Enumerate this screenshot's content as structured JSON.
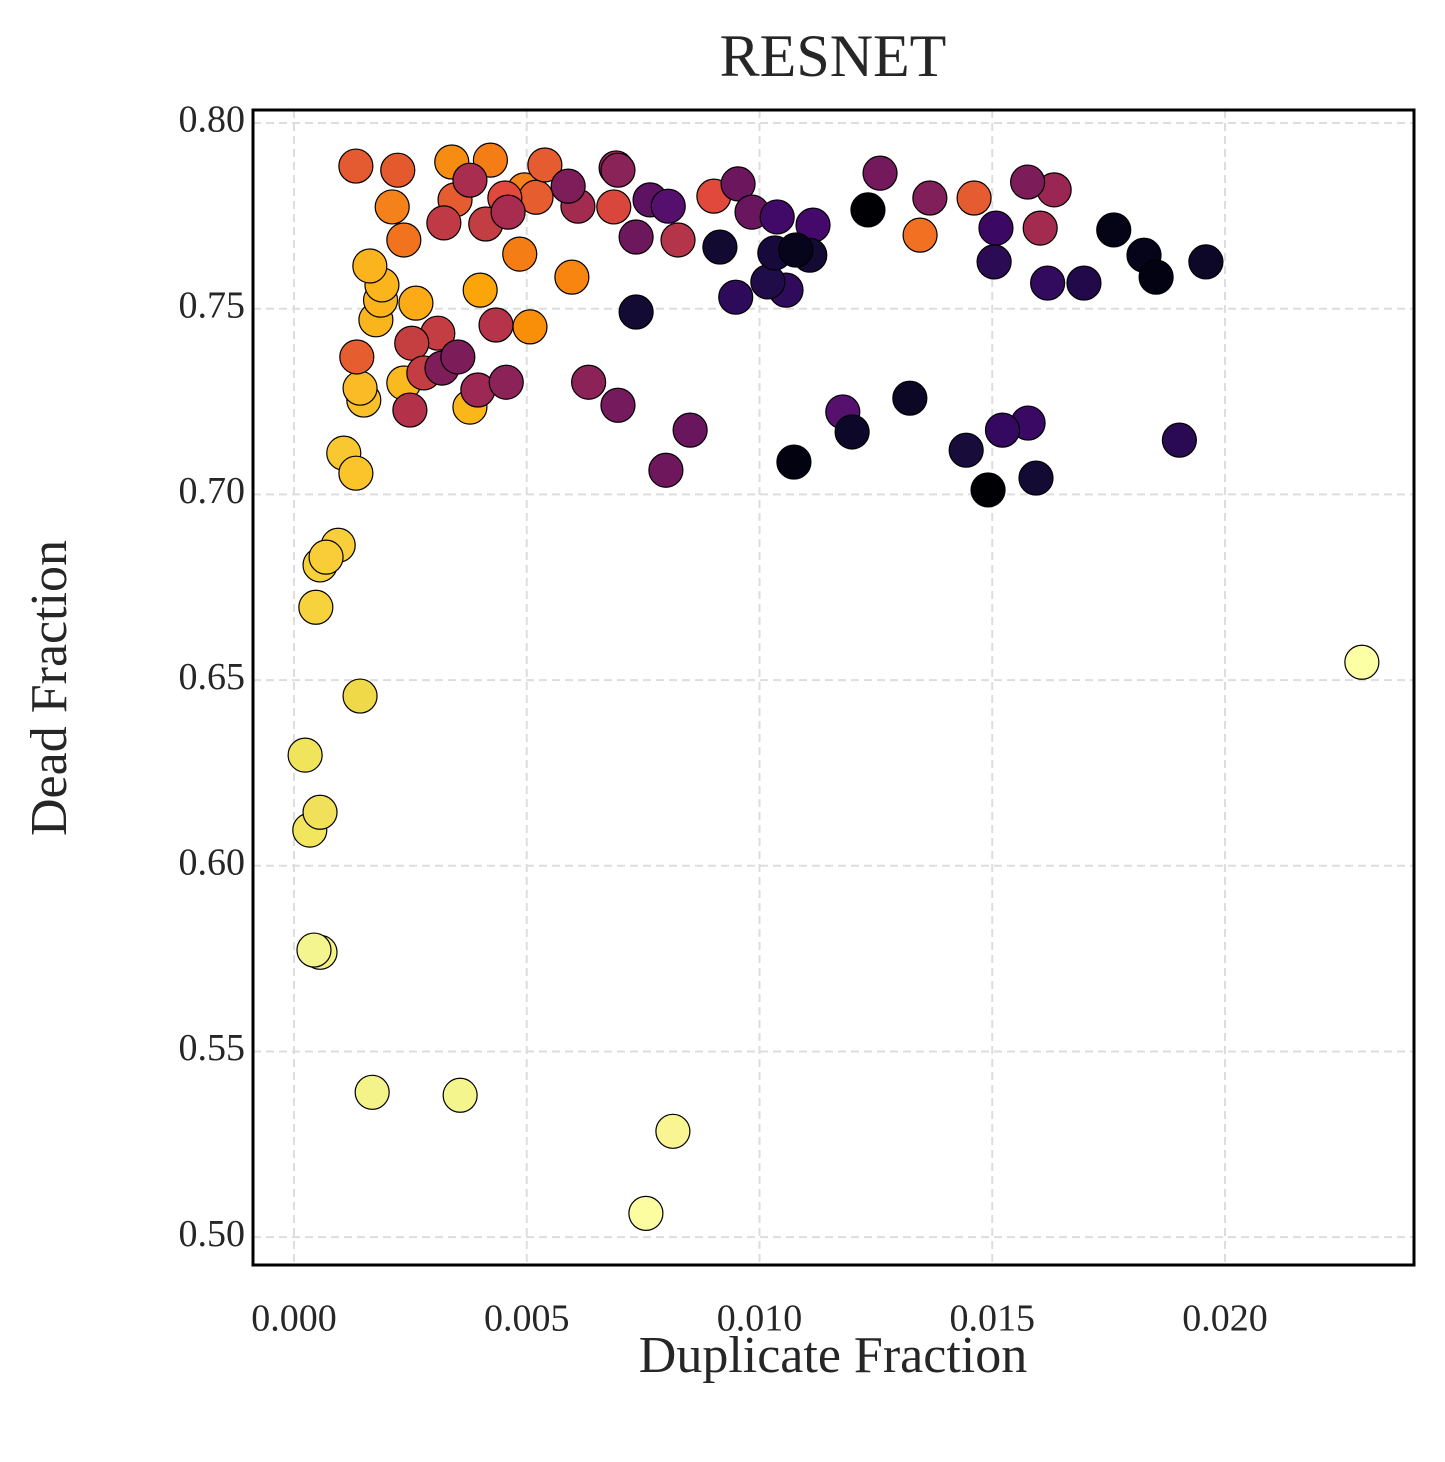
{
  "chart_data": {
    "type": "scatter",
    "title": "RESNET",
    "x_label": "Duplicate Fraction",
    "y_label": "Dead Fraction",
    "xlim": [
      -0.00088,
      0.02406
    ],
    "ylim": [
      0.4925,
      0.8035
    ],
    "xticks": [
      {
        "value": 0,
        "label": "0.000"
      },
      0.005,
      {
        "value": 0.01,
        "label": "0.010"
      },
      0.015,
      {
        "value": 0.02,
        "label": "0.020"
      }
    ],
    "yticks": [
      {
        "value": 0.5,
        "label": "0.50"
      },
      0.55,
      {
        "value": 0.6,
        "label": "0.60"
      },
      0.65,
      {
        "value": 0.7,
        "label": "0.70"
      },
      0.75,
      {
        "value": 0.8,
        "label": "0.80"
      }
    ],
    "grid": true,
    "edge_color": "#000000",
    "x": [
      0.00422,
      0.00495,
      0.0052,
      0.02294,
      0.00756,
      0.00814,
      0.00357,
      0.00168,
      0.00056,
      0.00043,
      0.00034,
      0.00056,
      0.00024,
      0.00142,
      0.00047,
      0.00056,
      0.00095,
      0.00069,
      0.00107,
      0.00133,
      0.0015,
      0.00142,
      0.00236,
      0.00378,
      0.00176,
      0.00186,
      0.00189,
      0.00163,
      0.00262,
      0.004,
      0.00485,
      0.00507,
      0.00597,
      0.00236,
      0.00211,
      0.00133,
      0.00223,
      0.00339,
      0.00539,
      0.01461,
      0.01345,
      0.00902,
      0.00135,
      0.00687,
      0.00346,
      0.00453,
      0.00322,
      0.00378,
      0.00412,
      0.0046,
      0.00434,
      0.00309,
      0.00249,
      0.00253,
      0.0061,
      0.00825,
      0.01603,
      0.01633,
      0.00692,
      0.00279,
      0.00395,
      0.00456,
      0.00318,
      0.00352,
      0.00589,
      0.00696,
      0.00633,
      0.00696,
      0.00735,
      0.00799,
      0.00851,
      0.00765,
      0.00804,
      0.00954,
      0.00984,
      0.01259,
      0.01366,
      0.01576,
      0.01179,
      0.01038,
      0.01115,
      0.01508,
      0.01577,
      0.01522,
      0.01902,
      0.01619,
      0.01504,
      0.01697,
      0.00949,
      0.01057,
      0.01018,
      0.00735,
      0.00915,
      0.01033,
      0.01108,
      0.01078,
      0.01233,
      0.01323,
      0.01199,
      0.01074,
      0.01444,
      0.01491,
      0.01594,
      0.01761,
      0.01826,
      0.01852,
      0.01959
    ],
    "values": [
      0.79,
      0.782,
      0.78,
      0.6548,
      0.5064,
      0.5285,
      0.5382,
      0.539,
      0.5767,
      0.5773,
      0.6096,
      0.6144,
      0.6298,
      0.6457,
      0.6696,
      0.681,
      0.6863,
      0.6831,
      0.7111,
      0.7057,
      0.7254,
      0.7286,
      0.73,
      0.7235,
      0.747,
      0.7523,
      0.7564,
      0.7615,
      0.7515,
      0.755,
      0.7647,
      0.7451,
      0.7585,
      0.7685,
      0.7774,
      0.7884,
      0.7873,
      0.7895,
      0.7887,
      0.7798,
      0.7698,
      0.7803,
      0.737,
      0.7774,
      0.7793,
      0.7798,
      0.7731,
      0.7846,
      0.7728,
      0.776,
      0.7456,
      0.7434,
      0.7227,
      0.7407,
      0.7776,
      0.7685,
      0.7717,
      0.782,
      0.7879,
      0.7327,
      0.7281,
      0.7302,
      0.734,
      0.737,
      0.783,
      0.7873,
      0.7302,
      0.724,
      0.7693,
      0.7065,
      0.7173,
      0.7793,
      0.7776,
      0.7836,
      0.776,
      0.7865,
      0.7798,
      0.7841,
      0.7222,
      0.7747,
      0.7725,
      0.7717,
      0.7192,
      0.7173,
      0.7146,
      0.7569,
      0.7626,
      0.7569,
      0.7531,
      0.755,
      0.7572,
      0.7491,
      0.7666,
      0.765,
      0.7644,
      0.7658,
      0.7766,
      0.7259,
      0.7168,
      0.7087,
      0.7119,
      0.7012,
      0.7044,
      0.7712,
      0.7644,
      0.7585,
      0.7626
    ],
    "colors": [
      "#f57d15",
      "#f4811a",
      "#e65d2f",
      "#fcffa4",
      "#fbfda0",
      "#f8f592",
      "#f5f58d",
      "#f4f38a",
      "#f3f287",
      "#f4f58e",
      "#f1e65e",
      "#f1e15a",
      "#f0e45d",
      "#f0d948",
      "#f6d33c",
      "#f7d13c",
      "#f8ce3b",
      "#f8cd37",
      "#f9c830",
      "#fac42a",
      "#f9c02a",
      "#fbbb27",
      "#fbb920",
      "#fbb61a",
      "#fbb51c",
      "#fbb41c",
      "#fbb41c",
      "#fbb31e",
      "#fcaa15",
      "#fca50a",
      "#f57d15",
      "#f98e09",
      "#f8850f",
      "#f1731d",
      "#f4811a",
      "#e45a31",
      "#e5592f",
      "#f68d12",
      "#e55c30",
      "#e55c30",
      "#f17022",
      "#e0493c",
      "#e65d2f",
      "#d9473c",
      "#e55c30",
      "#e0493c",
      "#c03a45",
      "#a92d4f",
      "#c23e43",
      "#a82b50",
      "#b5344a",
      "#c33d42",
      "#b3324a",
      "#c53f40",
      "#a22b50",
      "#b4354a",
      "#a42b50",
      "#9a2753",
      "#9b2853",
      "#c33d42",
      "#9c2853",
      "#8b2258",
      "#7e1d5a",
      "#7c1d5a",
      "#7d1d5a",
      "#8a2358",
      "#8b2258",
      "#751a5c",
      "#6d175c",
      "#6e175d",
      "#6a165e",
      "#5d1262",
      "#550f6d",
      "#6c175d",
      "#6a165e",
      "#741a5c",
      "#801f5a",
      "#7c1d5a",
      "#56106e",
      "#420a68",
      "#45096c",
      "#3b0964",
      "#390963",
      "#35095f",
      "#2a0a52",
      "#320a5e",
      "#2b0c54",
      "#21094a",
      "#2e0a5a",
      "#300a5b",
      "#1f0c48",
      "#140b34",
      "#120a30",
      "#18093c",
      "#130b32",
      "#07051b",
      "#000004",
      "#0b0724",
      "#0d0829",
      "#030210",
      "#170c3a",
      "#000004",
      "#140b35",
      "#050416",
      "#06041a",
      "#030213",
      "#0e0828"
    ]
  }
}
